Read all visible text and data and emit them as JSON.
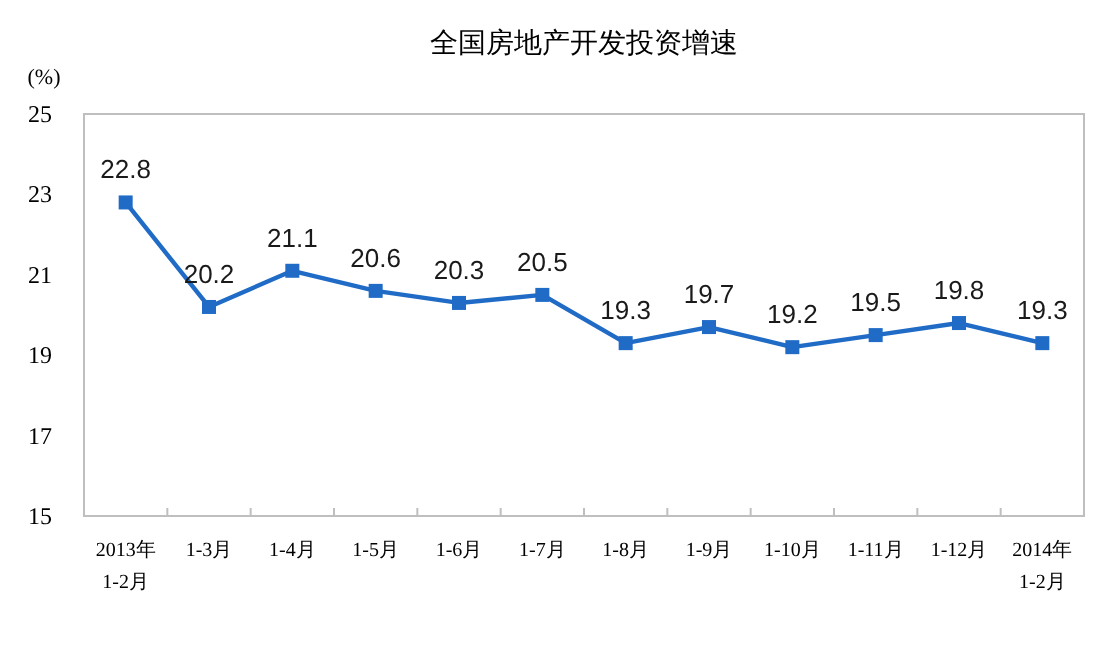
{
  "chart_data": {
    "type": "line",
    "title": "全国房地产开发投资增速",
    "ylabel": "(%)",
    "categories": [
      "2013年\n1-2月",
      "1-3月",
      "1-4月",
      "1-5月",
      "1-6月",
      "1-7月",
      "1-8月",
      "1-9月",
      "1-10月",
      "1-11月",
      "1-12月",
      "2014年\n1-2月"
    ],
    "series": [
      {
        "color": "#1f6bc6",
        "values": [
          22.8,
          20.2,
          21.1,
          20.6,
          20.3,
          20.5,
          19.3,
          19.7,
          19.2,
          19.5,
          19.8,
          19.3
        ]
      }
    ],
    "ylim": [
      15,
      25
    ],
    "yticks": [
      15,
      17,
      19,
      21,
      23,
      25
    ],
    "marker": "square",
    "line_style": "solid",
    "data_labels": true,
    "grid": false
  }
}
